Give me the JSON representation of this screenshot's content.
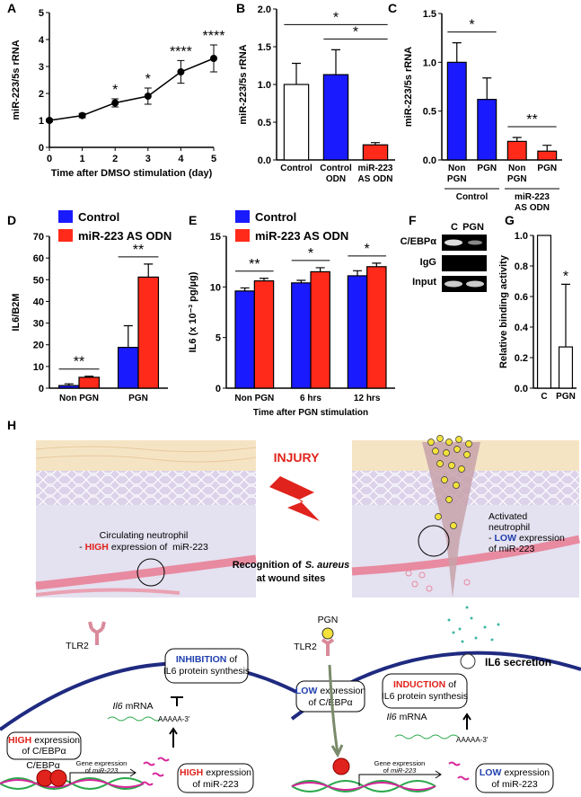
{
  "chart_data": [
    {
      "type": "line",
      "panel": "A",
      "ylabel": "miR-223/5s rRNA",
      "xlabel": "Time after DMSO stimulation (day)",
      "x": [
        0,
        1,
        2,
        3,
        4,
        5
      ],
      "xlim": [
        0,
        5
      ],
      "xticks": [
        0,
        1,
        2,
        3,
        4,
        5
      ],
      "ylim": [
        0,
        5
      ],
      "yticks": [
        0,
        1,
        2,
        3,
        4,
        5
      ],
      "series": [
        {
          "color": "#000000",
          "values": [
            1.0,
            1.18,
            1.65,
            1.9,
            2.8,
            3.3
          ],
          "errors": [
            0.05,
            0.08,
            0.15,
            0.3,
            0.42,
            0.5
          ]
        }
      ],
      "annotations": [
        null,
        null,
        "*",
        "*",
        "****",
        "****"
      ]
    },
    {
      "type": "bar",
      "panel": "B",
      "ylabel": "miR-223/5s rRNA",
      "categories": [
        [
          "Control"
        ],
        [
          "Control",
          "ODN"
        ],
        [
          "miR-223",
          "AS ODN"
        ]
      ],
      "values": [
        1.0,
        1.13,
        0.2
      ],
      "errors": [
        0.28,
        0.33,
        0.03
      ],
      "colors": [
        "#ffffff",
        "#1a1aff",
        "#ff2a1a"
      ],
      "ylim": [
        0,
        2
      ],
      "yticks": [
        {
          "value": 0,
          "label": "0.0"
        },
        0.5,
        {
          "value": 1,
          "label": "1.0"
        },
        1.5,
        {
          "value": 2,
          "label": "2.0"
        }
      ],
      "brackets": [
        {
          "from": 0,
          "to": 2,
          "label": "*"
        },
        {
          "from": 1,
          "to": 2,
          "label": "*"
        }
      ]
    },
    {
      "type": "bar",
      "panel": "C",
      "ylabel": "miR-223/5s rRNA",
      "categories": [
        [
          "Non",
          "PGN"
        ],
        [
          "PGN"
        ],
        [
          "Non",
          "PGN"
        ],
        [
          "PGN"
        ]
      ],
      "values": [
        1.0,
        0.62,
        0.19,
        0.09
      ],
      "errors": [
        0.2,
        0.22,
        0.04,
        0.06
      ],
      "colors": [
        "#1a1aff",
        "#1a1aff",
        "#ff2a1a",
        "#ff2a1a"
      ],
      "ylim": [
        0,
        1.5
      ],
      "yticks": [
        {
          "value": 0,
          "label": "0.0"
        },
        0.5,
        {
          "value": 1,
          "label": "1.0"
        },
        1.5
      ],
      "brackets": [
        {
          "from": 0,
          "to": 1,
          "label": "*"
        },
        {
          "from": 2,
          "to": 3,
          "label": "**"
        }
      ],
      "groups": [
        {
          "label": [
            "Control"
          ],
          "from": 0,
          "to": 1
        },
        {
          "label": [
            "miR-223",
            "AS ODN"
          ],
          "from": 2,
          "to": 3
        }
      ]
    },
    {
      "type": "grouped_bar",
      "panel": "D",
      "ylabel": "IL6/B2M",
      "categories": [
        "Non PGN",
        "PGN"
      ],
      "ylim": [
        0,
        70
      ],
      "yticks": [
        0,
        10,
        20,
        30,
        40,
        50,
        60,
        70
      ],
      "legend": "top-left",
      "series": [
        {
          "name": "Control",
          "color": "#1a1aff",
          "values": [
            1.2,
            18.8
          ],
          "errors": [
            0.8,
            10
          ]
        },
        {
          "name": "miR-223 AS ODN",
          "color": "#ff2a1a",
          "values": [
            5.0,
            51.2
          ],
          "errors": [
            0.5,
            6
          ]
        }
      ],
      "annotations": [
        "**",
        "**"
      ]
    },
    {
      "type": "grouped_bar",
      "panel": "E",
      "ylabel": "IL6 (x 10⁻³ pg/µg)",
      "xlabel": "Time after PGN stimulation",
      "categories": [
        "Non PGN",
        "6 hrs",
        "12 hrs"
      ],
      "ylim": [
        0,
        15
      ],
      "yticks": [
        0,
        5,
        10,
        15
      ],
      "legend": "top-left",
      "series": [
        {
          "name": "Control",
          "color": "#1a1aff",
          "values": [
            9.6,
            10.4,
            11.1
          ],
          "errors": [
            0.3,
            0.25,
            0.5
          ]
        },
        {
          "name": "miR-223 AS ODN",
          "color": "#ff2a1a",
          "values": [
            10.6,
            11.5,
            12.0
          ],
          "errors": [
            0.25,
            0.4,
            0.35
          ]
        }
      ],
      "annotations": [
        "**",
        "*",
        "*"
      ]
    },
    {
      "type": "bar",
      "panel": "G",
      "ylabel": "Relative binding activity",
      "categories": [
        [
          "C"
        ],
        [
          "PGN"
        ]
      ],
      "values": [
        1.0,
        0.27
      ],
      "errors": [
        null,
        0.41
      ],
      "colors": [
        "#ffffff",
        "#ffffff"
      ],
      "ylim": [
        0,
        1
      ],
      "yticks": [
        {
          "value": 0,
          "label": "0.0"
        },
        0.2,
        0.4,
        0.6,
        0.8,
        {
          "value": 1,
          "label": "1.0"
        }
      ],
      "annotations": [
        null,
        "*"
      ]
    }
  ],
  "blot": {
    "panel": "F",
    "lanes": [
      "C",
      "PGN"
    ],
    "rows": [
      "C/EBPα",
      "IgG",
      "Input"
    ]
  },
  "diagram": {
    "panel": "H",
    "injury": "INJURY",
    "recognition": {
      "line1": [
        "Recognition of",
        "S. aureus"
      ],
      "line2": "at wound sites"
    },
    "left_cell": {
      "line1": "Circulating neutrophil",
      "line2": [
        "-",
        "HIGH",
        "expression of  miR-223"
      ]
    },
    "right_cell": {
      "line1": "Activated",
      "line2": "neutrophil",
      "line3": [
        "-",
        "LOW",
        "expression"
      ],
      "line4": "of miR-223"
    },
    "left_mech": {
      "receptor": "TLR2",
      "inhibition": {
        "line1": [
          "INHIBITION",
          "of"
        ],
        "line2": "IL6 protein synthesis"
      },
      "mrna": [
        "Il6",
        "mRNA"
      ],
      "polya": "AAAAA-3'",
      "cebp_box": {
        "line1": [
          "HIGH",
          "expression"
        ],
        "line2": "of C/EBPα"
      },
      "cebp": "C/EBPα",
      "gene_expr": {
        "line1": "Gene expression",
        "line2": [
          "of",
          "miR-223"
        ]
      },
      "mir_box": {
        "line1": [
          "HIGH",
          "expression"
        ],
        "line2": "of miR-223"
      }
    },
    "right_mech": {
      "ligand": "PGN",
      "receptor": "TLR2",
      "secretion": "IL6 secretion",
      "induction": {
        "line1": [
          "INDUCTION",
          "of"
        ],
        "line2": "IL6 protein synthesis"
      },
      "cebp_box": {
        "line1": [
          "LOW",
          "expression"
        ],
        "line2": "of C/EBPα"
      },
      "mrna": [
        "Il6",
        "mRNA"
      ],
      "polya": "AAAAA-3'",
      "gene_expr": {
        "line1": "Gene expression",
        "line2": [
          "of",
          "miR-223"
        ]
      },
      "mir_box": {
        "line1": [
          "LOW",
          "expression"
        ],
        "line2": "of miR-223"
      }
    }
  }
}
